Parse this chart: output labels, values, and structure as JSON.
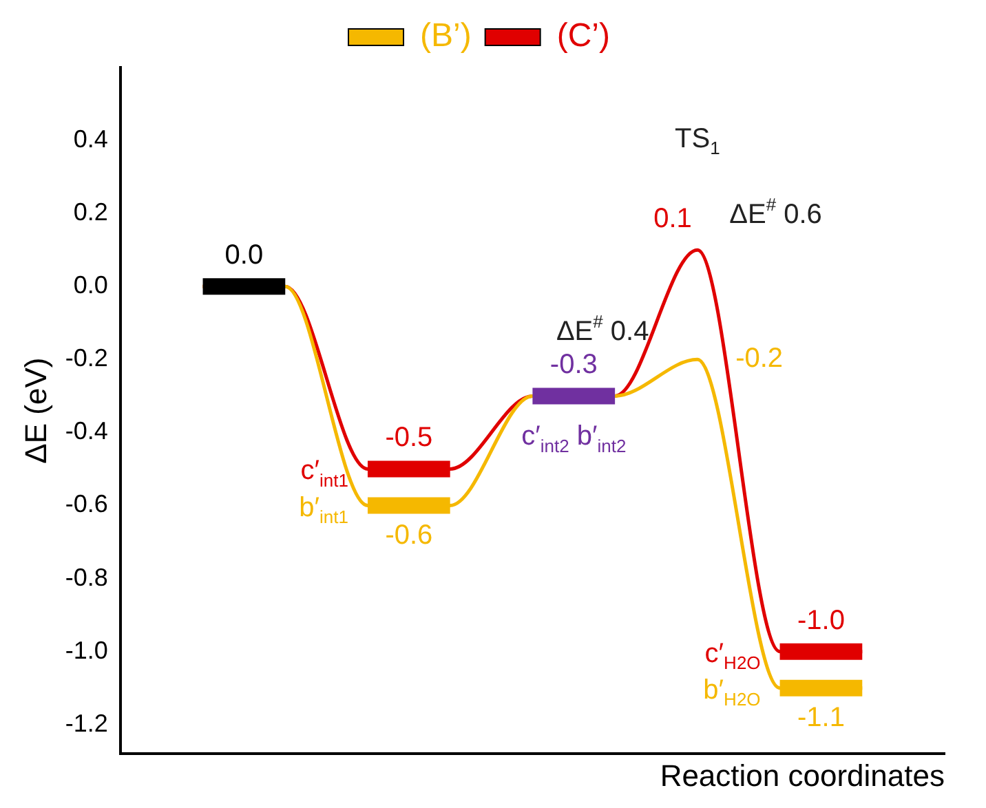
{
  "chart_data": {
    "type": "line",
    "xlabel": "Reaction coordinates",
    "ylabel": "ΔE (eV)",
    "categories": [
      null,
      null,
      null,
      null,
      null,
      null,
      null,
      null,
      null,
      null,
      null
    ],
    "ylim": [
      -1.28,
      0.6
    ],
    "yticks": [
      -1.2,
      {
        "value": -1,
        "label": "-1.0"
      },
      -0.8,
      -0.6,
      -0.4,
      -0.2,
      {
        "value": 0,
        "label": "0.0"
      },
      0.2,
      0.4
    ],
    "tick_labels": "y",
    "grid": false,
    "legend": "top",
    "marker": "none",
    "annotations": [
      "TS$_{1}$",
      "ΔE$^{#}$ 0.6",
      "ΔE$^{#}$ 0.4"
    ],
    "series": [
      {
        "type": "line",
        "color": "#000000",
        "values": [
          null,
          0.0,
          0.0,
          null,
          null,
          null,
          null,
          null,
          null,
          null,
          null
        ],
        "value_labels": [
          null,
          "0.0",
          null,
          null,
          null,
          null,
          null,
          null,
          null,
          null,
          null
        ]
      },
      {
        "type": "line",
        "name": "c′$_{int1}$",
        "color": "#e00000",
        "values": [
          null,
          null,
          null,
          -0.5,
          -0.5,
          null,
          null,
          null,
          null,
          null,
          null
        ],
        "value_labels": [
          null,
          null,
          null,
          "-0.5",
          null,
          null,
          null,
          null,
          null,
          null,
          null
        ]
      },
      {
        "type": "line",
        "name": "b′$_{int1}$",
        "color": "#f5b800",
        "values": [
          null,
          null,
          null,
          -0.6,
          -0.6,
          null,
          null,
          null,
          null,
          null,
          null
        ],
        "value_labels": [
          null,
          null,
          null,
          "-0.6",
          null,
          null,
          null,
          null,
          null,
          null,
          null
        ]
      },
      {
        "type": "line",
        "name": "c′$_{int2}$ b′$_{int2}$",
        "color": "#7030a0",
        "values": [
          null,
          null,
          null,
          null,
          null,
          -0.3,
          -0.3,
          null,
          null,
          null,
          null
        ],
        "value_labels": [
          null,
          null,
          null,
          null,
          null,
          "-0.3",
          null,
          null,
          null,
          null,
          null
        ]
      },
      {
        "type": "line",
        "name": "c′$_{H2O}$",
        "color": "#e00000",
        "values": [
          null,
          null,
          null,
          null,
          null,
          null,
          null,
          null,
          -1.0,
          -1.0,
          null
        ],
        "value_labels": [
          null,
          null,
          null,
          null,
          null,
          null,
          null,
          null,
          "-1.0",
          null,
          null
        ]
      },
      {
        "type": "line",
        "name": "b′$_{H2O}$",
        "color": "#f5b800",
        "values": [
          null,
          null,
          null,
          null,
          null,
          null,
          null,
          null,
          -1.1,
          -1.1,
          null
        ],
        "value_labels": [
          null,
          null,
          null,
          null,
          null,
          null,
          null,
          null,
          "-1.1",
          null,
          null
        ]
      },
      {
        "name": "(B’)",
        "color": "#f5b800",
        "values": [
          null,
          0.0,
          0.0,
          -0.6,
          -0.6,
          -0.3,
          -0.3,
          -0.2,
          -1.1,
          -1.1,
          null
        ],
        "value_labels": [
          null,
          null,
          null,
          null,
          null,
          null,
          null,
          "-0.2",
          null,
          null,
          null
        ]
      },
      {
        "name": "(C’)",
        "color": "#e00000",
        "values": [
          null,
          0.0,
          0.0,
          -0.5,
          -0.5,
          -0.3,
          -0.3,
          0.1,
          -1.0,
          -1.0,
          null
        ],
        "value_labels": [
          null,
          null,
          null,
          null,
          null,
          null,
          null,
          "0.1",
          null,
          null,
          null
        ]
      }
    ]
  }
}
